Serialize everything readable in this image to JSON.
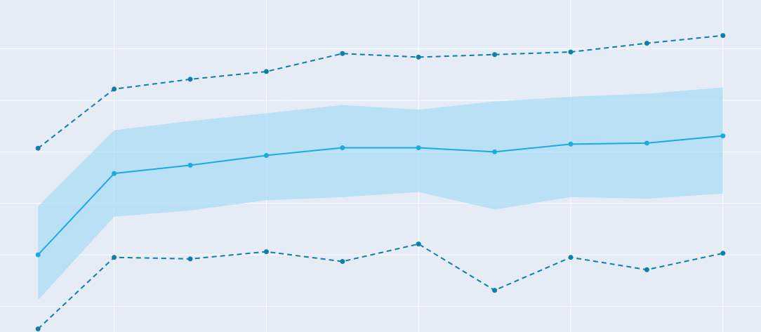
{
  "chart_data": {
    "type": "line",
    "title": "",
    "xlabel": "",
    "ylabel": "",
    "x": [
      1,
      2,
      3,
      4,
      5,
      6,
      7,
      8,
      9,
      10
    ],
    "xlim": [
      0.5,
      10.5
    ],
    "ylim": [
      0.5,
      6.95
    ],
    "grid": true,
    "legend": "none",
    "series": [
      {
        "role": "mean",
        "style": "solid",
        "values": [
          2.0,
          3.58,
          3.74,
          3.93,
          4.08,
          4.08,
          4.0,
          4.15,
          4.17,
          4.31
        ]
      },
      {
        "role": "band-upper",
        "style": "fill",
        "values": [
          2.94,
          4.42,
          4.6,
          4.75,
          4.91,
          4.82,
          4.98,
          5.07,
          5.13,
          5.25
        ]
      },
      {
        "role": "band-lower",
        "style": "fill",
        "values": [
          1.12,
          2.74,
          2.86,
          3.06,
          3.12,
          3.22,
          2.88,
          3.12,
          3.09,
          3.19
        ]
      },
      {
        "role": "max",
        "style": "dashed",
        "values": [
          4.07,
          5.22,
          5.41,
          5.56,
          5.91,
          5.84,
          5.89,
          5.94,
          6.11,
          6.26
        ]
      },
      {
        "role": "min",
        "style": "dashed",
        "values": [
          0.56,
          1.95,
          1.92,
          2.06,
          1.87,
          2.21,
          1.31,
          1.95,
          1.71,
          2.03
        ]
      }
    ],
    "colors": {
      "background": "#e5ecf6",
      "grid": "#ffffff",
      "band": "#abdcf5",
      "mean": "#1aabe0",
      "bounds": "#0d7fa8"
    }
  }
}
